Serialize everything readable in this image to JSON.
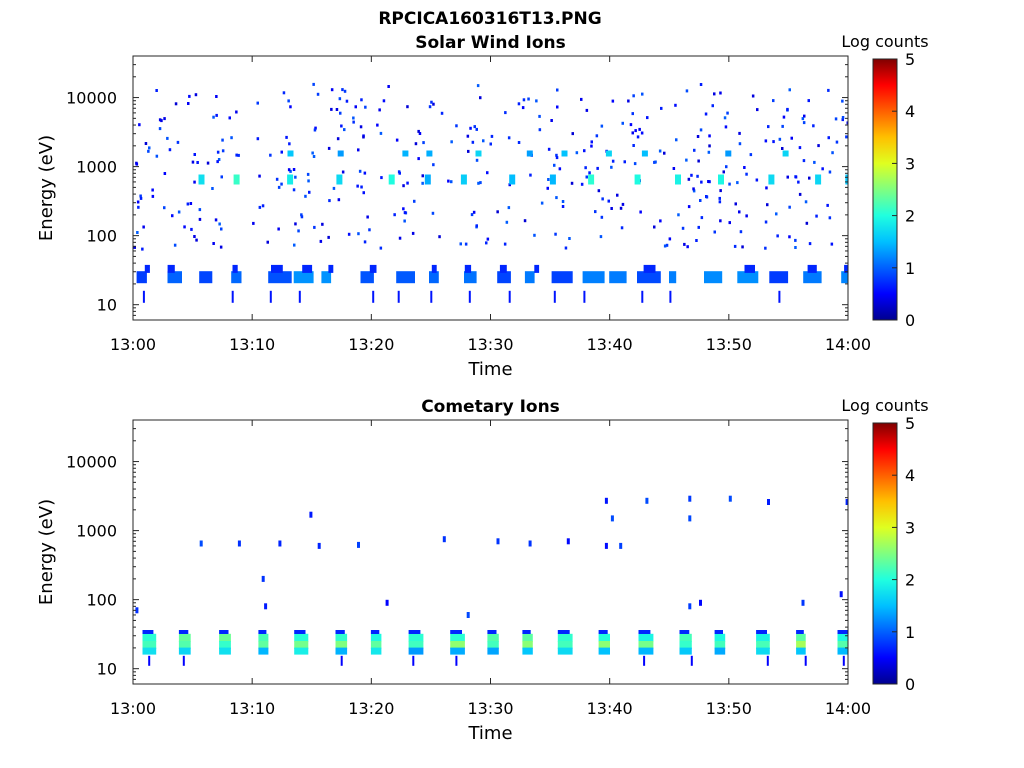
{
  "figure": {
    "file_title": "RPCICA160316T13.PNG"
  },
  "colorscale": {
    "colors": [
      "#00008f",
      "#0000ff",
      "#0060ff",
      "#00c0ff",
      "#20ffdf",
      "#80ff80",
      "#dfff20",
      "#ffc000",
      "#ff6000",
      "#ff0000",
      "#800000"
    ]
  },
  "chart_data": [
    {
      "type": "heatmap",
      "title": "Solar Wind Ions",
      "xlabel": "Time",
      "ylabel": "Energy (eV)",
      "x_range": [
        "13:00",
        "14:00"
      ],
      "x_ticks": [
        "13:00",
        "13:10",
        "13:20",
        "13:30",
        "13:40",
        "13:50",
        "14:00"
      ],
      "y_scale": "log",
      "y_range": [
        6,
        40000
      ],
      "y_ticks": [
        10,
        100,
        1000,
        10000
      ],
      "y_tick_labels": [
        "10",
        "100",
        "1000",
        "10000"
      ],
      "colorbar": {
        "label": "Log counts",
        "range": [
          0,
          5
        ],
        "ticks": [
          "0",
          "1",
          "2",
          "3",
          "4",
          "5"
        ]
      },
      "features": [
        {
          "energy_ev": 25,
          "log_counts": 0.8,
          "pattern": "recurring blocks every ~2-3 min, 13:00-14:00"
        },
        {
          "energy_ev": 650,
          "log_counts": 2.0,
          "pattern": "recurring spots, peak ~2.6 near 13:36"
        },
        {
          "energy_ev": 1550,
          "log_counts": 1.5,
          "pattern": "recurring spots"
        },
        {
          "energy_ev": 3000,
          "log_counts": 0.5,
          "pattern": "scattered points 100-10000 eV"
        }
      ]
    },
    {
      "type": "heatmap",
      "title": "Cometary Ions",
      "xlabel": "Time",
      "ylabel": "Energy (eV)",
      "x_range": [
        "13:00",
        "14:00"
      ],
      "x_ticks": [
        "13:00",
        "13:10",
        "13:20",
        "13:30",
        "13:40",
        "13:50",
        "14:00"
      ],
      "y_scale": "log",
      "y_range": [
        6,
        40000
      ],
      "y_ticks": [
        10,
        100,
        1000,
        10000
      ],
      "y_tick_labels": [
        "10",
        "100",
        "1000",
        "10000"
      ],
      "colorbar": {
        "label": "Log counts",
        "range": [
          0,
          5
        ],
        "ticks": [
          "0",
          "1",
          "2",
          "3",
          "4",
          "5"
        ]
      },
      "features": [
        {
          "energy_ev": 22,
          "log_counts": 2.1,
          "pattern": "recurring blocks every ~3 min, 13:00-14:00"
        },
        {
          "energy_ev": 650,
          "log_counts": 0.8,
          "pattern": "sparse points"
        },
        {
          "energy_ev": 2500,
          "log_counts": 0.5,
          "pattern": "sparse points after 13:40"
        }
      ]
    }
  ]
}
